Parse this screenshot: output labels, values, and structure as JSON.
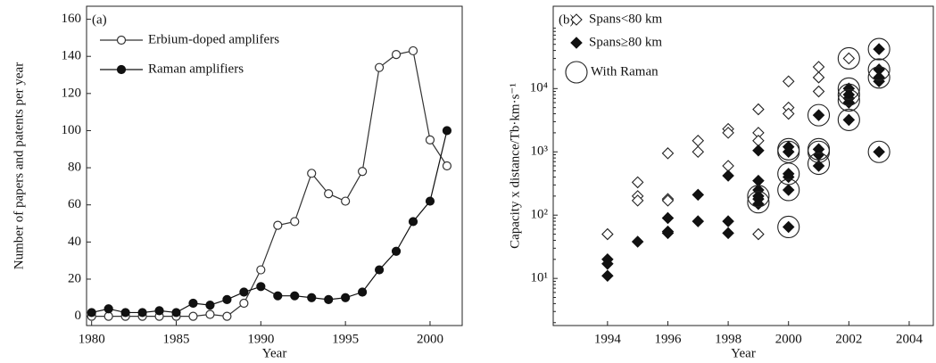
{
  "chart_data": [
    {
      "type": "line",
      "annotation": "(a)",
      "xlabel": "Year",
      "ylabel": "Number of papers and patents per year",
      "x": [
        1980,
        1981,
        1982,
        1983,
        1984,
        1985,
        1986,
        1987,
        1988,
        1989,
        1990,
        1991,
        1992,
        1993,
        1994,
        1995,
        1996,
        1997,
        1998,
        1999,
        2000,
        2001
      ],
      "series": [
        {
          "name": "Erbium-doped amplifers",
          "color": "#333333",
          "marker": "open-circle",
          "values": [
            0,
            0,
            0,
            0,
            0,
            0,
            0,
            1,
            0,
            7,
            25,
            49,
            51,
            77,
            66,
            62,
            78,
            134,
            141,
            143,
            95,
            81
          ]
        },
        {
          "name": "Raman amplifiers",
          "color": "#111111",
          "marker": "filled-circle",
          "values": [
            2,
            4,
            2,
            2,
            3,
            2,
            7,
            6,
            9,
            13,
            16,
            11,
            11,
            10,
            9,
            10,
            13,
            25,
            35,
            51,
            62,
            100
          ]
        }
      ],
      "xlim": [
        1979.7,
        2001.9
      ],
      "xticks": [
        1980,
        1985,
        1990,
        1995,
        2000
      ],
      "ylim": [
        -5,
        167
      ],
      "yticks": [
        0,
        20,
        40,
        60,
        80,
        100,
        120,
        140,
        160
      ],
      "log_y": false,
      "legend": "upper left"
    },
    {
      "type": "scatter",
      "annotation": "(b)",
      "xlabel": "Year",
      "ylabel": "Capacity x distance/Tb·km·s⁻¹",
      "series": [
        {
          "name": "Spans<80 km",
          "color": "#222222",
          "marker": "open-diamond",
          "x": [
            1994,
            1995,
            1995,
            1995,
            1996,
            1996,
            1996,
            1997,
            1997,
            1998,
            1998,
            1998,
            1999,
            1999,
            1999,
            1999,
            2000,
            2000,
            2000,
            2001,
            2001,
            2001,
            2002
          ],
          "values": [
            50,
            330,
            200,
            170,
            950,
            180,
            170,
            1500,
            1000,
            2300,
            2000,
            600,
            4700,
            2000,
            1500,
            50,
            13000,
            5000,
            4000,
            22000,
            15000,
            9000,
            30000
          ]
        },
        {
          "name": "Spans≥80 km",
          "color": "#111111",
          "marker": "filled-diamond",
          "x": [
            1994,
            1994,
            1994,
            1995,
            1996,
            1996,
            1996,
            1997,
            1997,
            1998,
            1998,
            1998,
            1999,
            1999,
            1999,
            1999,
            1999,
            1999,
            2000,
            2000,
            2000,
            2000,
            2000,
            2000,
            2001,
            2001,
            2001,
            2001,
            2002,
            2002,
            2002,
            2002,
            2002,
            2003,
            2003,
            2003,
            2003,
            2003
          ],
          "values": [
            20,
            17,
            11,
            38,
            90,
            55,
            52,
            210,
            80,
            420,
            80,
            52,
            1050,
            350,
            250,
            200,
            180,
            150,
            1200,
            1000,
            450,
            400,
            250,
            65,
            3800,
            1100,
            900,
            600,
            10000,
            8000,
            7000,
            6000,
            3200,
            42000,
            20000,
            15000,
            13000,
            1000
          ]
        },
        {
          "name": "With Raman",
          "color": "#222222",
          "marker": "open-circle",
          "x": [
            1999,
            1999,
            2000,
            2000,
            2000,
            2000,
            2000,
            2001,
            2001,
            2001,
            2001,
            2002,
            2002,
            2002,
            2002,
            2002,
            2003,
            2003,
            2003,
            2003
          ],
          "values": [
            200,
            160,
            1100,
            1000,
            450,
            250,
            65,
            3800,
            1100,
            1000,
            650,
            30000,
            10000,
            8000,
            6500,
            3200,
            42000,
            20000,
            15000,
            1000
          ]
        }
      ],
      "xlim": [
        1992.2,
        2004.8
      ],
      "xticks": [
        1994,
        1996,
        1998,
        2000,
        2002,
        2004
      ],
      "ylim": [
        1.8,
        200000
      ],
      "yticks": [
        {
          "value": 10,
          "label": "10¹"
        },
        {
          "value": 100,
          "label": "10²"
        },
        {
          "value": 1000,
          "label": "10³"
        },
        {
          "value": 10000,
          "label": "10⁴"
        }
      ],
      "log_y": true,
      "legend": "upper left"
    }
  ]
}
